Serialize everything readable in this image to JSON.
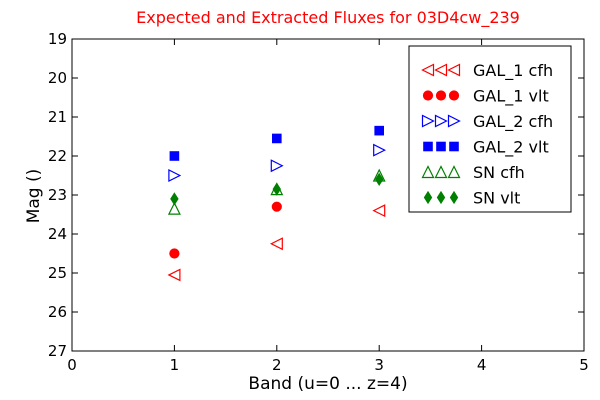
{
  "chart_data": {
    "type": "scatter",
    "title": "Expected and Extracted Fluxes for 03D4cw_239",
    "xlabel": "Band (u=0 ... z=4)",
    "ylabel": "Mag ()",
    "xlim": [
      0,
      5
    ],
    "ylim": [
      27,
      19
    ],
    "y_inverted": true,
    "grid": false,
    "legend_position": "top-right",
    "x_ticks": [
      "0",
      "1",
      "2",
      "3",
      "4",
      "5"
    ],
    "y_ticks": [
      "19",
      "20",
      "21",
      "22",
      "23",
      "24",
      "25",
      "26",
      "27"
    ],
    "series": [
      {
        "name": "GAL_1 cfh",
        "marker": "triangle-left",
        "filled": false,
        "color": "#ff0000",
        "points": [
          {
            "x": 1,
            "y": 25.05
          },
          {
            "x": 2,
            "y": 24.25
          },
          {
            "x": 3,
            "y": 23.4
          }
        ]
      },
      {
        "name": "GAL_1 vlt",
        "marker": "circle",
        "filled": true,
        "color": "#ff0000",
        "points": [
          {
            "x": 1,
            "y": 24.5
          },
          {
            "x": 2,
            "y": 23.3
          }
        ]
      },
      {
        "name": "GAL_2 cfh",
        "marker": "triangle-right",
        "filled": false,
        "color": "#0000ff",
        "points": [
          {
            "x": 1,
            "y": 22.5
          },
          {
            "x": 2,
            "y": 22.25
          },
          {
            "x": 3,
            "y": 21.85
          }
        ]
      },
      {
        "name": "GAL_2 vlt",
        "marker": "square",
        "filled": true,
        "color": "#0000ff",
        "points": [
          {
            "x": 1,
            "y": 22.0
          },
          {
            "x": 2,
            "y": 21.55
          },
          {
            "x": 3,
            "y": 21.35
          }
        ]
      },
      {
        "name": "SN cfh",
        "marker": "triangle-up",
        "filled": false,
        "color": "#008000",
        "points": [
          {
            "x": 1,
            "y": 23.35
          },
          {
            "x": 2,
            "y": 22.85
          },
          {
            "x": 3,
            "y": 22.5
          }
        ]
      },
      {
        "name": "SN vlt",
        "marker": "diamond",
        "filled": true,
        "color": "#008000",
        "points": [
          {
            "x": 1,
            "y": 23.1
          },
          {
            "x": 2,
            "y": 22.85
          },
          {
            "x": 3,
            "y": 22.6
          }
        ]
      }
    ]
  }
}
